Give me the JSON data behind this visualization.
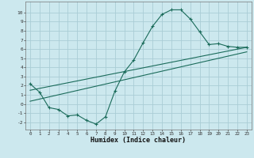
{
  "xlabel": "Humidex (Indice chaleur)",
  "ylabel": "",
  "bg_color": "#cce8ee",
  "grid_color": "#aacdd6",
  "line_color": "#1a6b5a",
  "xlim": [
    -0.5,
    23.5
  ],
  "ylim": [
    -2.8,
    11.2
  ],
  "xticks": [
    0,
    1,
    2,
    3,
    4,
    5,
    6,
    7,
    8,
    9,
    10,
    11,
    12,
    13,
    14,
    15,
    16,
    17,
    18,
    19,
    20,
    21,
    22,
    23
  ],
  "yticks": [
    -2,
    -1,
    0,
    1,
    2,
    3,
    4,
    5,
    6,
    7,
    8,
    9,
    10
  ],
  "curve1_x": [
    0,
    1,
    2,
    3,
    4,
    5,
    6,
    7,
    8,
    9,
    10,
    11,
    12,
    13,
    14,
    15,
    16,
    17,
    18,
    19,
    20,
    21,
    22,
    23
  ],
  "curve1_y": [
    2.2,
    1.3,
    -0.4,
    -0.6,
    -1.3,
    -1.2,
    -1.8,
    -2.2,
    -1.4,
    1.4,
    3.5,
    4.8,
    6.7,
    8.5,
    9.8,
    10.3,
    10.3,
    9.3,
    7.9,
    6.5,
    6.6,
    6.3,
    6.2,
    6.2
  ],
  "curve2_x": [
    0,
    23
  ],
  "curve2_y": [
    1.5,
    6.2
  ],
  "curve3_x": [
    0,
    23
  ],
  "curve3_y": [
    0.3,
    5.7
  ]
}
